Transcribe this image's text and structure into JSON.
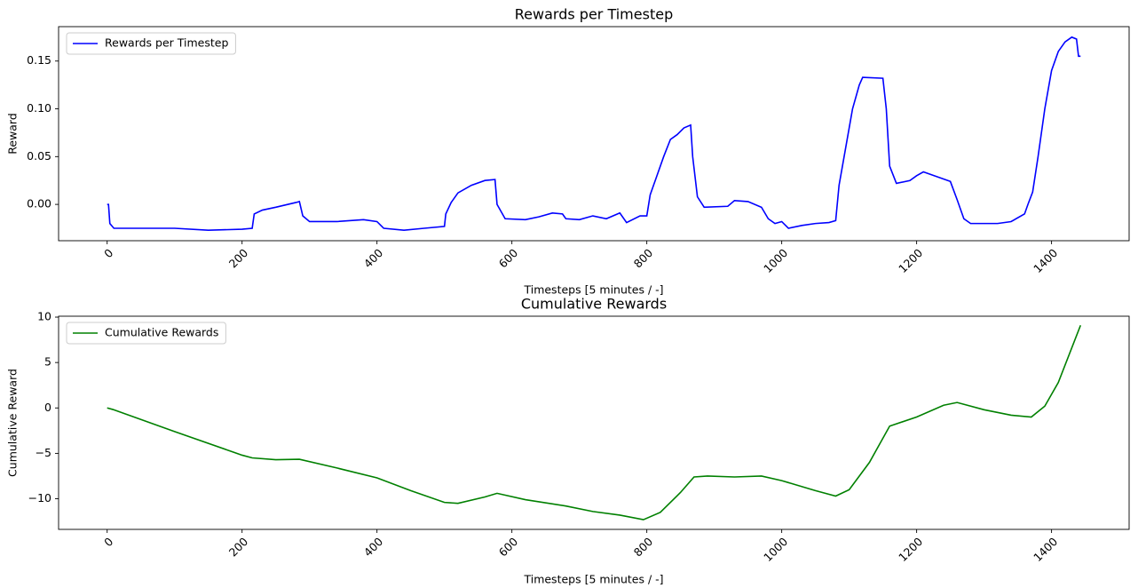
{
  "chart_data": [
    {
      "type": "line",
      "title": "Rewards per Timestep",
      "xlabel": "Timesteps [5 minutes / -]",
      "ylabel": "Reward",
      "x": [
        0,
        2,
        4,
        10,
        100,
        150,
        200,
        215,
        218,
        230,
        250,
        280,
        285,
        290,
        300,
        340,
        380,
        400,
        410,
        440,
        470,
        500,
        502,
        510,
        520,
        540,
        560,
        575,
        578,
        590,
        620,
        640,
        660,
        675,
        680,
        700,
        720,
        740,
        760,
        770,
        790,
        800,
        805,
        815,
        825,
        835,
        845,
        855,
        865,
        868,
        875,
        885,
        920,
        930,
        950,
        970,
        980,
        990,
        1000,
        1010,
        1030,
        1050,
        1070,
        1080,
        1085,
        1095,
        1105,
        1115,
        1120,
        1150,
        1155,
        1160,
        1170,
        1190,
        1200,
        1210,
        1230,
        1250,
        1260,
        1270,
        1280,
        1320,
        1340,
        1360,
        1365,
        1372,
        1380,
        1390,
        1400,
        1410,
        1420,
        1430,
        1437,
        1440,
        1443
      ],
      "series": [
        {
          "name": "Rewards per Timestep",
          "color": "#0000ff",
          "values": [
            0.0,
            0.0,
            -0.02,
            -0.025,
            -0.025,
            -0.027,
            -0.026,
            -0.025,
            -0.01,
            -0.006,
            -0.003,
            0.002,
            0.003,
            -0.012,
            -0.018,
            -0.018,
            -0.016,
            -0.018,
            -0.025,
            -0.027,
            -0.025,
            -0.023,
            -0.01,
            0.002,
            0.012,
            0.02,
            0.025,
            0.026,
            0.0,
            -0.015,
            -0.016,
            -0.013,
            -0.009,
            -0.01,
            -0.015,
            -0.016,
            -0.012,
            -0.015,
            -0.009,
            -0.019,
            -0.012,
            -0.012,
            0.01,
            0.03,
            0.05,
            0.068,
            0.073,
            0.08,
            0.083,
            0.05,
            0.008,
            -0.003,
            -0.002,
            0.004,
            0.003,
            -0.003,
            -0.015,
            -0.02,
            -0.018,
            -0.025,
            -0.022,
            -0.02,
            -0.019,
            -0.017,
            0.02,
            0.06,
            0.1,
            0.125,
            0.133,
            0.132,
            0.1,
            0.04,
            0.022,
            0.025,
            0.03,
            0.034,
            0.029,
            0.024,
            0.005,
            -0.015,
            -0.02,
            -0.02,
            -0.018,
            -0.01,
            0.0,
            0.013,
            0.05,
            0.1,
            0.14,
            0.16,
            0.17,
            0.175,
            0.173,
            0.155,
            0.155
          ]
        }
      ],
      "xlim": [
        -72,
        1515
      ],
      "xticks": [
        0,
        200,
        400,
        600,
        800,
        1000,
        1200,
        1400
      ],
      "ylim": [
        -0.038,
        0.186
      ],
      "yticks": [
        {
          "value": 0,
          "label": "0.00"
        },
        {
          "value": 0.05,
          "label": "0.05"
        },
        {
          "value": 0.1,
          "label": "0.10"
        },
        {
          "value": 0.15,
          "label": "0.15"
        }
      ],
      "legend": "upper left"
    },
    {
      "type": "line",
      "title": "Cumulative Rewards",
      "xlabel": "Timesteps [5 minutes / -]",
      "ylabel": "Cumulative Reward",
      "x": [
        0,
        10,
        100,
        200,
        215,
        250,
        285,
        340,
        400,
        450,
        500,
        520,
        560,
        578,
        620,
        680,
        720,
        760,
        795,
        820,
        850,
        870,
        890,
        930,
        970,
        1000,
        1050,
        1080,
        1100,
        1130,
        1160,
        1200,
        1240,
        1260,
        1300,
        1340,
        1370,
        1390,
        1410,
        1443
      ],
      "series": [
        {
          "name": "Cumulative Rewards",
          "color": "#008000",
          "values": [
            0,
            -0.2,
            -2.6,
            -5.2,
            -5.5,
            -5.7,
            -5.65,
            -6.6,
            -7.7,
            -9.1,
            -10.4,
            -10.5,
            -9.8,
            -9.4,
            -10.1,
            -10.8,
            -11.4,
            -11.8,
            -12.3,
            -11.5,
            -9.3,
            -7.6,
            -7.5,
            -7.6,
            -7.5,
            -8.0,
            -9.1,
            -9.7,
            -9.0,
            -6.0,
            -2.0,
            -1.0,
            0.3,
            0.6,
            -0.2,
            -0.8,
            -1.0,
            0.2,
            2.8,
            9.1
          ]
        }
      ],
      "xlim": [
        -72,
        1515
      ],
      "xticks": [
        0,
        200,
        400,
        600,
        800,
        1000,
        1200,
        1400
      ],
      "ylim": [
        -13.37,
        10.1
      ],
      "yticks": [
        {
          "value": -10,
          "label": "−10"
        },
        {
          "value": -5,
          "label": "−5"
        },
        0,
        5,
        10
      ],
      "legend": "upper left"
    }
  ]
}
